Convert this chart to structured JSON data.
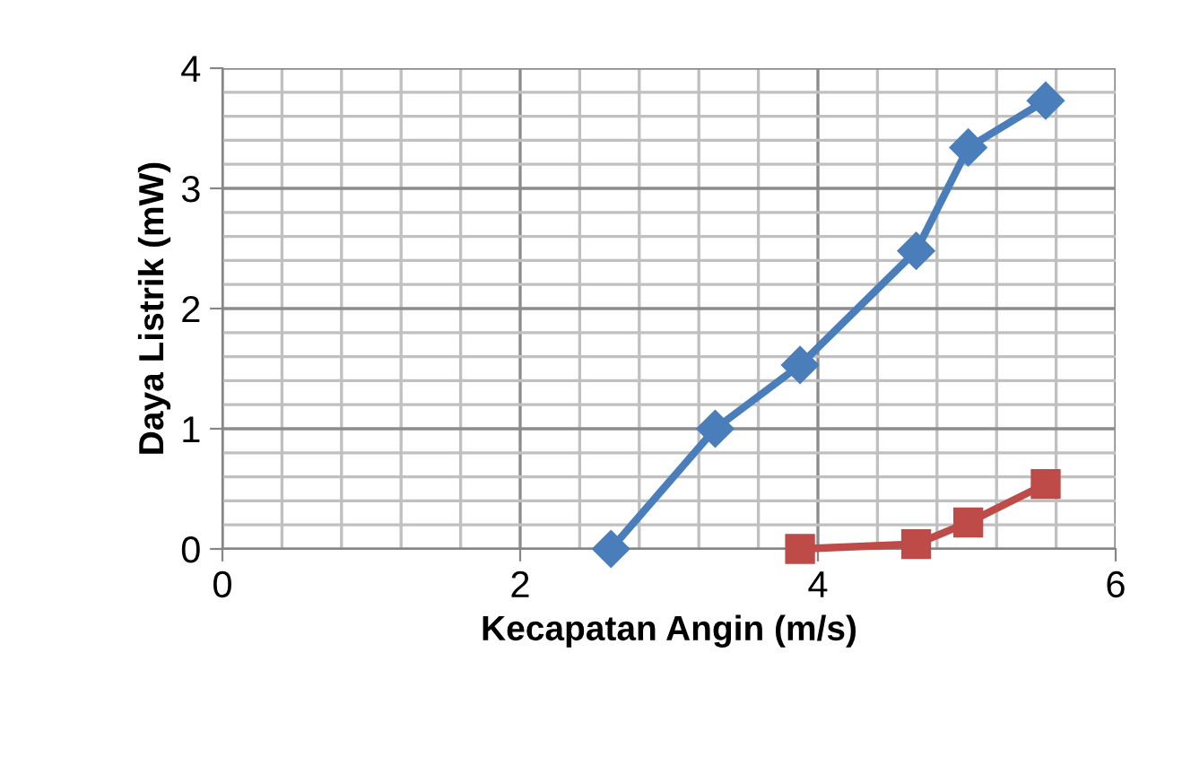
{
  "chart_data": {
    "type": "line",
    "xlabel": "Kecapatan Angin (m/s)",
    "ylabel": "Daya Listrik (mW)",
    "xlim": [
      0,
      6
    ],
    "xticks": [
      0,
      2,
      4,
      6
    ],
    "ylim": [
      0,
      4
    ],
    "yticks": [
      0,
      1,
      2,
      3,
      4
    ],
    "grid": true,
    "line_style": "solid",
    "series": [
      {
        "color": "#4a7ebb",
        "marker": "diamond",
        "x": [
          2.61,
          3.31,
          3.88,
          4.66,
          5.01,
          5.53
        ],
        "values": [
          0,
          1.0,
          1.53,
          2.48,
          3.34,
          3.73
        ]
      },
      {
        "color": "#be4b48",
        "marker": "square",
        "x": [
          3.88,
          4.66,
          5.01,
          5.53
        ],
        "values": [
          0,
          0.04,
          0.22,
          0.54
        ]
      }
    ]
  }
}
